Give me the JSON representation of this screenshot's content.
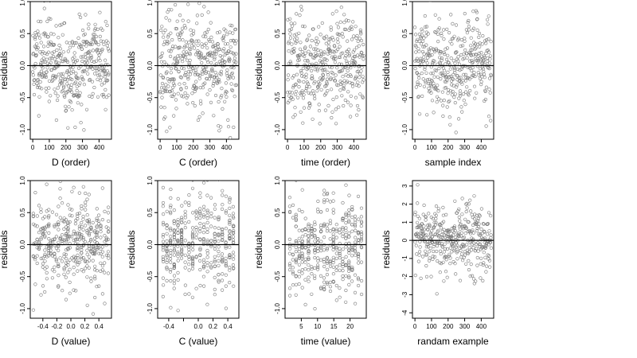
{
  "chart_data": [
    {
      "type": "scatter",
      "xlabel": "D (order)",
      "ylabel": "residuals",
      "xlim": [
        -15,
        475
      ],
      "ylim": [
        -1.15,
        1.0
      ],
      "xticks": [
        0,
        100,
        200,
        300,
        400
      ],
      "xtick_labels": [
        "0",
        "100",
        "200",
        "300",
        "400"
      ],
      "yticks": [
        -1.0,
        -0.5,
        0.0,
        0.5,
        1.0
      ],
      "ytick_labels": [
        "-1.0",
        "-0.5",
        "0.0",
        "0.5",
        "1.0"
      ],
      "zero_line": true,
      "sim": {
        "mode": "order",
        "n": 400,
        "xmin": 0,
        "xmax": 460,
        "sd": 0.36,
        "seed": 11,
        "wave": 0.18
      }
    },
    {
      "type": "scatter",
      "xlabel": "C (order)",
      "ylabel": "residuals",
      "xlim": [
        -15,
        475
      ],
      "ylim": [
        -1.15,
        1.0
      ],
      "xticks": [
        0,
        100,
        200,
        300,
        400
      ],
      "xtick_labels": [
        "0",
        "100",
        "200",
        "300",
        "400"
      ],
      "yticks": [
        -1.0,
        -0.5,
        0.0,
        0.5,
        1.0
      ],
      "ytick_labels": [
        "-1.0",
        "-0.5",
        "0.0",
        "0.5",
        "1.0"
      ],
      "zero_line": true,
      "sim": {
        "mode": "order",
        "n": 400,
        "xmin": 0,
        "xmax": 460,
        "sd": 0.38,
        "seed": 23,
        "wave": 0.0
      }
    },
    {
      "type": "scatter",
      "xlabel": "time (order)",
      "ylabel": "residuals",
      "xlim": [
        -15,
        475
      ],
      "ylim": [
        -1.15,
        1.0
      ],
      "xticks": [
        0,
        100,
        200,
        300,
        400
      ],
      "xtick_labels": [
        "0",
        "100",
        "200",
        "300",
        "400"
      ],
      "yticks": [
        -1.0,
        -0.5,
        0.0,
        0.5,
        1.0
      ],
      "ytick_labels": [
        "-1.0",
        "-0.5",
        "0.0",
        "0.5",
        "1.0"
      ],
      "zero_line": true,
      "sim": {
        "mode": "order",
        "n": 400,
        "xmin": 0,
        "xmax": 460,
        "sd": 0.38,
        "seed": 37,
        "wave": 0.0
      }
    },
    {
      "type": "scatter",
      "xlabel": "sample index",
      "ylabel": "residuals",
      "xlim": [
        -15,
        475
      ],
      "ylim": [
        -1.15,
        1.0
      ],
      "xticks": [
        0,
        100,
        200,
        300,
        400
      ],
      "xtick_labels": [
        "0",
        "100",
        "200",
        "300",
        "400"
      ],
      "yticks": [
        -1.0,
        -0.5,
        0.0,
        0.5,
        1.0
      ],
      "ytick_labels": [
        "-1.0",
        "-0.5",
        "0.0",
        "0.5",
        "1.0"
      ],
      "zero_line": true,
      "sim": {
        "mode": "order",
        "n": 400,
        "xmin": 0,
        "xmax": 460,
        "sd": 0.36,
        "seed": 41,
        "wave": 0.15
      }
    },
    {
      "type": "scatter",
      "xlabel": "D (value)",
      "ylabel": "residuals",
      "xlim": [
        -0.58,
        0.58
      ],
      "ylim": [
        -1.15,
        1.0
      ],
      "xticks": [
        -0.4,
        -0.2,
        0.0,
        0.2,
        0.4
      ],
      "xtick_labels": [
        "-0.4",
        "-0.2",
        "0.0",
        "0.2",
        "0.4"
      ],
      "yticks": [
        -1.0,
        -0.5,
        0.0,
        0.5,
        1.0
      ],
      "ytick_labels": [
        "-1.0",
        "-0.5",
        "0.0",
        "0.5",
        "1.0"
      ],
      "zero_line": true,
      "sim": {
        "mode": "value",
        "n": 400,
        "xmin": -0.55,
        "xmax": 0.55,
        "sd": 0.36,
        "seed": 53,
        "levels": 40
      }
    },
    {
      "type": "scatter",
      "xlabel": "C (value)",
      "ylabel": "residuals",
      "xlim": [
        -0.55,
        0.55
      ],
      "ylim": [
        -1.15,
        1.0
      ],
      "xticks": [
        -0.4,
        -0.2,
        0.0,
        0.2,
        0.4
      ],
      "xtick_labels": [
        "-0.4",
        "",
        "0.0",
        "0.2",
        "0.4"
      ],
      "yticks": [
        -1.0,
        -0.5,
        0.0,
        0.5,
        1.0
      ],
      "ytick_labels": [
        "-1.0",
        "-0.5",
        "0.0",
        "0.5",
        "1.0"
      ],
      "zero_line": true,
      "sim": {
        "mode": "value",
        "n": 400,
        "xmin": -0.5,
        "xmax": 0.5,
        "sd": 0.38,
        "seed": 67,
        "levels": 20
      }
    },
    {
      "type": "scatter",
      "xlabel": "time (value)",
      "ylabel": "residuals",
      "xlim": [
        0,
        25
      ],
      "ylim": [
        -1.15,
        1.0
      ],
      "xticks": [
        5,
        10,
        15,
        20
      ],
      "xtick_labels": [
        "5",
        "10",
        "15",
        "20"
      ],
      "yticks": [
        -1.0,
        -0.5,
        0.0,
        0.5,
        1.0
      ],
      "ytick_labels": [
        "-1.0",
        "-0.5",
        "0.0",
        "0.5",
        "1.0"
      ],
      "zero_line": true,
      "sim": {
        "mode": "value",
        "n": 400,
        "xmin": 1,
        "xmax": 24,
        "sd": 0.38,
        "seed": 79,
        "levels": 24
      }
    },
    {
      "type": "scatter",
      "xlabel": "randam example",
      "ylabel": "residuals",
      "xlim": [
        -15,
        475
      ],
      "ylim": [
        -4.3,
        3.3
      ],
      "xticks": [
        0,
        100,
        200,
        300,
        400
      ],
      "xtick_labels": [
        "0",
        "100",
        "200",
        "300",
        "400"
      ],
      "yticks": [
        -4,
        -3,
        -2,
        -1,
        0,
        1,
        2,
        3
      ],
      "ytick_labels": [
        "-4",
        "-3",
        "-2",
        "-1",
        "0",
        "1",
        "2",
        "3"
      ],
      "zero_line": true,
      "sim": {
        "mode": "order",
        "n": 400,
        "xmin": 0,
        "xmax": 460,
        "sd": 1.0,
        "seed": 97,
        "wave": 0.0
      }
    }
  ]
}
